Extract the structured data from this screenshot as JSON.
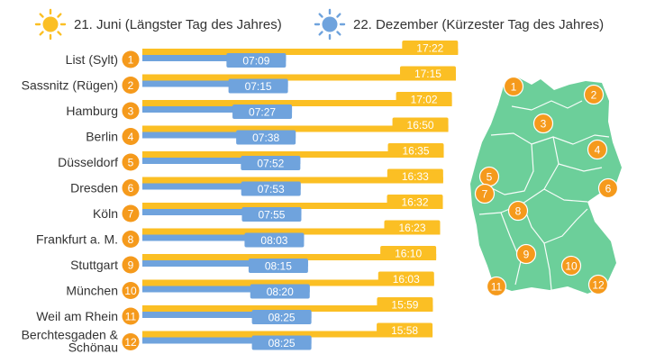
{
  "legend": {
    "summer": "21. Juni (Längster Tag des Jahres)",
    "winter": "22. Dezember (Kürzester Tag des Jahres)"
  },
  "colors": {
    "summer": "#fbbf24",
    "winter": "#6fa3dd",
    "badge": "#f59a1c",
    "map": "#6ccf9a",
    "map_border": "#ffffff"
  },
  "icons": {
    "summer": "sun-icon",
    "winter": "sun-icon-blue"
  },
  "chart_data": {
    "type": "bar",
    "orientation": "horizontal",
    "unit": "hh:mm",
    "categories": [
      {
        "num": "1",
        "lines": [
          "List (Sylt)"
        ]
      },
      {
        "num": "2",
        "lines": [
          "Sassnitz (Rügen)"
        ]
      },
      {
        "num": "3",
        "lines": [
          "Hamburg"
        ]
      },
      {
        "num": "4",
        "lines": [
          "Berlin"
        ]
      },
      {
        "num": "5",
        "lines": [
          "Düsseldorf"
        ]
      },
      {
        "num": "6",
        "lines": [
          "Dresden"
        ]
      },
      {
        "num": "7",
        "lines": [
          "Köln"
        ]
      },
      {
        "num": "8",
        "lines": [
          "Frankfurt a. M."
        ]
      },
      {
        "num": "9",
        "lines": [
          "Stuttgart"
        ]
      },
      {
        "num": "10",
        "lines": [
          "München"
        ]
      },
      {
        "num": "11",
        "lines": [
          "Weil am Rhein"
        ]
      },
      {
        "num": "12",
        "lines": [
          "Berchtesgaden &",
          "Schönau"
        ]
      }
    ],
    "series": [
      {
        "key": "summer",
        "values": [
          "17:22",
          "17:15",
          "17:02",
          "16:50",
          "16:35",
          "16:33",
          "16:32",
          "16:23",
          "16:10",
          "16:03",
          "15:59",
          "15:58"
        ]
      },
      {
        "key": "winter",
        "values": [
          "07:09",
          "07:15",
          "07:27",
          "07:38",
          "07:52",
          "07:53",
          "07:55",
          "08:03",
          "08:15",
          "08:20",
          "08:25",
          "08:25"
        ]
      }
    ],
    "map_markers": [
      "1",
      "2",
      "3",
      "4",
      "5",
      "6",
      "7",
      "8",
      "9",
      "10",
      "11",
      "12"
    ]
  }
}
